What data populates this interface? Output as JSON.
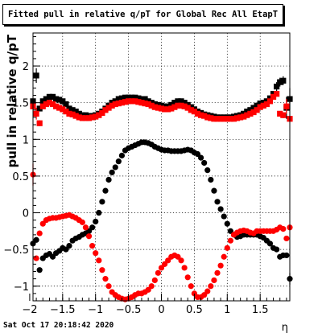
{
  "chart_data": {
    "type": "scatter",
    "title": "Fitted pull in relative q/pT for Global Rec All EtapT",
    "xlabel": "η",
    "ylabel": "pull in relative q/pT",
    "xlim": [
      -1.95,
      1.95
    ],
    "ylim": [
      -1.2,
      2.45
    ],
    "x_ticks": [
      -2,
      -1.5,
      -1,
      -0.5,
      0,
      0.5,
      1,
      1.5
    ],
    "x_tick_labels": [
      "−2",
      "−1.5",
      "−1",
      "−0.5",
      "0",
      "0.5",
      "1",
      "1.5"
    ],
    "y_ticks": [
      -1,
      -0.5,
      0,
      0.5,
      1,
      1.5,
      2
    ],
    "y_tick_labels": [
      "−1",
      "−0.5",
      "0",
      "0.5",
      "1",
      "1.5",
      "2"
    ],
    "grid": true,
    "series": [
      {
        "marker": "square",
        "color": "#000000",
        "x": [
          -1.95,
          -1.9,
          -1.85,
          -1.8,
          -1.75,
          -1.7,
          -1.65,
          -1.6,
          -1.55,
          -1.5,
          -1.45,
          -1.4,
          -1.35,
          -1.3,
          -1.25,
          -1.2,
          -1.15,
          -1.1,
          -1.05,
          -1.0,
          -0.95,
          -0.9,
          -0.85,
          -0.8,
          -0.75,
          -0.7,
          -0.65,
          -0.6,
          -0.55,
          -0.5,
          -0.45,
          -0.4,
          -0.35,
          -0.3,
          -0.25,
          -0.2,
          -0.15,
          -0.1,
          -0.05,
          0.0,
          0.05,
          0.1,
          0.15,
          0.2,
          0.25,
          0.3,
          0.35,
          0.4,
          0.45,
          0.5,
          0.55,
          0.6,
          0.65,
          0.7,
          0.75,
          0.8,
          0.85,
          0.9,
          0.95,
          1.0,
          1.05,
          1.1,
          1.15,
          1.2,
          1.25,
          1.3,
          1.35,
          1.4,
          1.45,
          1.5,
          1.55,
          1.6,
          1.65,
          1.7,
          1.75,
          1.8,
          1.85,
          1.9,
          1.95
        ],
        "y": [
          1.52,
          1.87,
          1.42,
          1.52,
          1.55,
          1.58,
          1.58,
          1.55,
          1.54,
          1.52,
          1.48,
          1.42,
          1.4,
          1.38,
          1.35,
          1.33,
          1.33,
          1.32,
          1.32,
          1.33,
          1.35,
          1.38,
          1.42,
          1.46,
          1.5,
          1.52,
          1.55,
          1.56,
          1.57,
          1.57,
          1.57,
          1.57,
          1.56,
          1.55,
          1.55,
          1.52,
          1.5,
          1.48,
          1.47,
          1.46,
          1.45,
          1.45,
          1.47,
          1.5,
          1.52,
          1.52,
          1.5,
          1.47,
          1.44,
          1.41,
          1.38,
          1.36,
          1.34,
          1.33,
          1.32,
          1.31,
          1.3,
          1.3,
          1.3,
          1.3,
          1.3,
          1.31,
          1.32,
          1.33,
          1.35,
          1.38,
          1.4,
          1.43,
          1.46,
          1.49,
          1.5,
          1.52,
          1.56,
          1.62,
          1.72,
          1.78,
          1.8,
          1.43,
          1.55
        ],
        "err": [
          0,
          0.1,
          0,
          0,
          0,
          0,
          0,
          0,
          0,
          0,
          0,
          0,
          0,
          0,
          0,
          0,
          0,
          0,
          0,
          0,
          0,
          0,
          0,
          0,
          0,
          0,
          0,
          0,
          0,
          0,
          0,
          0,
          0,
          0,
          0,
          0,
          0,
          0,
          0,
          0,
          0,
          0,
          0,
          0,
          0,
          0,
          0,
          0,
          0,
          0,
          0,
          0,
          0,
          0,
          0,
          0,
          0,
          0,
          0,
          0,
          0,
          0,
          0,
          0,
          0,
          0,
          0,
          0,
          0,
          0,
          0,
          0,
          0,
          0,
          0.06,
          0.06,
          0.06,
          0.15,
          0.15
        ]
      },
      {
        "marker": "square",
        "color": "#ff0000",
        "x": [
          -1.95,
          -1.9,
          -1.85,
          -1.8,
          -1.75,
          -1.7,
          -1.65,
          -1.6,
          -1.55,
          -1.5,
          -1.45,
          -1.4,
          -1.35,
          -1.3,
          -1.25,
          -1.2,
          -1.15,
          -1.1,
          -1.05,
          -1.0,
          -0.95,
          -0.9,
          -0.85,
          -0.8,
          -0.75,
          -0.7,
          -0.65,
          -0.6,
          -0.55,
          -0.5,
          -0.45,
          -0.4,
          -0.35,
          -0.3,
          -0.25,
          -0.2,
          -0.15,
          -0.1,
          -0.05,
          0.0,
          0.05,
          0.1,
          0.15,
          0.2,
          0.25,
          0.3,
          0.35,
          0.4,
          0.45,
          0.5,
          0.55,
          0.6,
          0.65,
          0.7,
          0.75,
          0.8,
          0.85,
          0.9,
          0.95,
          1.0,
          1.05,
          1.1,
          1.15,
          1.2,
          1.25,
          1.3,
          1.35,
          1.4,
          1.45,
          1.5,
          1.55,
          1.6,
          1.65,
          1.7,
          1.75,
          1.8,
          1.85,
          1.9,
          1.95
        ],
        "y": [
          1.45,
          1.35,
          1.22,
          1.45,
          1.48,
          1.5,
          1.48,
          1.45,
          1.43,
          1.41,
          1.38,
          1.35,
          1.34,
          1.32,
          1.3,
          1.29,
          1.29,
          1.29,
          1.3,
          1.31,
          1.33,
          1.36,
          1.4,
          1.43,
          1.46,
          1.48,
          1.49,
          1.5,
          1.51,
          1.52,
          1.52,
          1.52,
          1.51,
          1.5,
          1.49,
          1.48,
          1.46,
          1.44,
          1.43,
          1.42,
          1.41,
          1.41,
          1.42,
          1.44,
          1.46,
          1.46,
          1.45,
          1.43,
          1.4,
          1.38,
          1.35,
          1.33,
          1.32,
          1.3,
          1.29,
          1.28,
          1.28,
          1.28,
          1.28,
          1.28,
          1.28,
          1.28,
          1.29,
          1.3,
          1.31,
          1.33,
          1.35,
          1.37,
          1.4,
          1.44,
          1.46,
          1.48,
          1.52,
          1.58,
          1.62,
          1.35,
          1.33,
          1.45,
          1.28
        ],
        "err": [
          0,
          0.08,
          0.04,
          0,
          0,
          0,
          0,
          0,
          0,
          0,
          0,
          0,
          0,
          0,
          0,
          0,
          0,
          0,
          0,
          0,
          0,
          0,
          0,
          0,
          0,
          0,
          0,
          0,
          0,
          0,
          0,
          0,
          0,
          0,
          0,
          0,
          0,
          0,
          0,
          0,
          0,
          0,
          0,
          0,
          0,
          0,
          0,
          0,
          0,
          0,
          0,
          0,
          0,
          0,
          0,
          0,
          0,
          0,
          0,
          0,
          0,
          0,
          0,
          0,
          0,
          0,
          0,
          0,
          0,
          0,
          0,
          0,
          0,
          0,
          0,
          0,
          0.04,
          0.1,
          0
        ]
      },
      {
        "marker": "circle",
        "color": "#000000",
        "x": [
          -1.95,
          -1.9,
          -1.85,
          -1.8,
          -1.75,
          -1.7,
          -1.65,
          -1.6,
          -1.55,
          -1.5,
          -1.45,
          -1.4,
          -1.35,
          -1.3,
          -1.25,
          -1.2,
          -1.15,
          -1.1,
          -1.05,
          -1.0,
          -0.95,
          -0.9,
          -0.85,
          -0.8,
          -0.75,
          -0.7,
          -0.65,
          -0.6,
          -0.55,
          -0.5,
          -0.45,
          -0.4,
          -0.35,
          -0.3,
          -0.25,
          -0.2,
          -0.15,
          -0.1,
          -0.05,
          0.0,
          0.05,
          0.1,
          0.15,
          0.2,
          0.25,
          0.3,
          0.35,
          0.4,
          0.45,
          0.5,
          0.55,
          0.6,
          0.65,
          0.7,
          0.75,
          0.8,
          0.85,
          0.9,
          0.95,
          1.0,
          1.05,
          1.1,
          1.15,
          1.2,
          1.25,
          1.3,
          1.35,
          1.4,
          1.45,
          1.5,
          1.55,
          1.6,
          1.65,
          1.7,
          1.75,
          1.8,
          1.85,
          1.9,
          1.95
        ],
        "y": [
          -0.42,
          -0.37,
          -0.78,
          -0.62,
          -0.58,
          -0.56,
          -0.6,
          -0.55,
          -0.52,
          -0.48,
          -0.5,
          -0.45,
          -0.38,
          -0.35,
          -0.33,
          -0.3,
          -0.28,
          -0.25,
          -0.2,
          -0.12,
          0.0,
          0.15,
          0.3,
          0.45,
          0.55,
          0.62,
          0.7,
          0.78,
          0.85,
          0.88,
          0.9,
          0.92,
          0.94,
          0.96,
          0.96,
          0.95,
          0.93,
          0.9,
          0.88,
          0.86,
          0.85,
          0.85,
          0.84,
          0.84,
          0.84,
          0.84,
          0.85,
          0.86,
          0.85,
          0.82,
          0.8,
          0.75,
          0.68,
          0.58,
          0.45,
          0.3,
          0.15,
          0.05,
          -0.05,
          -0.15,
          -0.25,
          -0.3,
          -0.33,
          -0.32,
          -0.3,
          -0.3,
          -0.3,
          -0.3,
          -0.3,
          -0.32,
          -0.34,
          -0.38,
          -0.42,
          -0.48,
          -0.5,
          -0.6,
          -0.58,
          -0.58,
          -0.9
        ],
        "err": [
          0,
          0,
          0,
          0,
          0,
          0,
          0,
          0,
          0,
          0,
          0,
          0,
          0,
          0,
          0,
          0,
          0,
          0,
          0,
          0,
          0,
          0,
          0,
          0,
          0,
          0,
          0,
          0,
          0,
          0,
          0,
          0,
          0,
          0,
          0,
          0,
          0,
          0,
          0,
          0,
          0,
          0,
          0,
          0,
          0,
          0,
          0,
          0,
          0,
          0,
          0,
          0,
          0,
          0,
          0,
          0,
          0,
          0,
          0,
          0,
          0,
          0,
          0,
          0,
          0,
          0,
          0,
          0,
          0,
          0,
          0,
          0,
          0,
          0,
          0,
          0,
          0,
          0,
          0.08
        ]
      },
      {
        "marker": "circle",
        "color": "#ff0000",
        "x": [
          -1.95,
          -1.9,
          -1.85,
          -1.8,
          -1.75,
          -1.7,
          -1.65,
          -1.6,
          -1.55,
          -1.5,
          -1.45,
          -1.4,
          -1.35,
          -1.3,
          -1.25,
          -1.2,
          -1.15,
          -1.1,
          -1.05,
          -1.0,
          -0.95,
          -0.9,
          -0.85,
          -0.8,
          -0.75,
          -0.7,
          -0.65,
          -0.6,
          -0.55,
          -0.5,
          -0.45,
          -0.4,
          -0.35,
          -0.3,
          -0.25,
          -0.2,
          -0.15,
          -0.1,
          -0.05,
          0.0,
          0.05,
          0.1,
          0.15,
          0.2,
          0.25,
          0.3,
          0.35,
          0.4,
          0.45,
          0.5,
          0.55,
          0.6,
          0.65,
          0.7,
          0.75,
          0.8,
          0.85,
          0.9,
          0.95,
          1.0,
          1.05,
          1.1,
          1.15,
          1.2,
          1.25,
          1.3,
          1.35,
          1.4,
          1.45,
          1.5,
          1.55,
          1.6,
          1.65,
          1.7,
          1.75,
          1.8,
          1.85,
          1.9,
          1.95
        ],
        "y": [
          0.52,
          -0.62,
          -0.28,
          -0.15,
          -0.1,
          -0.08,
          -0.07,
          -0.07,
          -0.06,
          -0.05,
          -0.04,
          -0.03,
          -0.05,
          -0.07,
          -0.1,
          -0.13,
          -0.2,
          -0.32,
          -0.45,
          -0.55,
          -0.65,
          -0.78,
          -0.9,
          -1.0,
          -1.08,
          -1.12,
          -1.15,
          -1.17,
          -1.18,
          -1.17,
          -1.15,
          -1.12,
          -1.1,
          -1.1,
          -1.08,
          -1.05,
          -1.0,
          -0.92,
          -0.82,
          -0.75,
          -0.7,
          -0.65,
          -0.6,
          -0.58,
          -0.6,
          -0.65,
          -0.75,
          -0.88,
          -1.0,
          -1.1,
          -1.15,
          -1.15,
          -1.12,
          -1.07,
          -1.0,
          -0.92,
          -0.82,
          -0.72,
          -0.6,
          -0.48,
          -0.38,
          -0.3,
          -0.27,
          -0.25,
          -0.24,
          -0.25,
          -0.27,
          -0.28,
          -0.25,
          -0.25,
          -0.25,
          -0.25,
          -0.25,
          -0.25,
          -0.23,
          -0.2,
          -0.22,
          -0.35,
          -0.2
        ],
        "err": [
          0.15,
          0,
          0,
          0,
          0,
          0,
          0,
          0,
          0,
          0,
          0,
          0,
          0,
          0,
          0,
          0,
          0,
          0,
          0,
          0,
          0,
          0,
          0,
          0,
          0,
          0,
          0,
          0,
          0,
          0,
          0,
          0,
          0,
          0,
          0,
          0,
          0,
          0,
          0,
          0,
          0,
          0,
          0,
          0,
          0,
          0,
          0,
          0,
          0,
          0,
          0,
          0,
          0,
          0,
          0,
          0,
          0,
          0,
          0,
          0,
          0,
          0,
          0,
          0,
          0,
          0,
          0,
          0,
          0,
          0,
          0,
          0,
          0,
          0,
          0,
          0,
          0,
          0,
          0
        ]
      }
    ]
  },
  "footer": {
    "timestamp": "Sat Oct 17 20:18:42 2020"
  }
}
